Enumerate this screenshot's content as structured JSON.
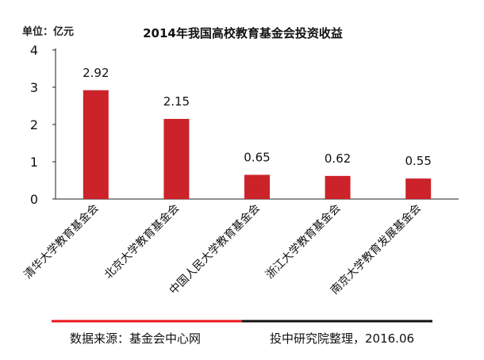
{
  "chart_data": {
    "type": "bar",
    "title": "2014年我国高校教育基金会投资收益",
    "unit_label": "单位：亿元",
    "categories": [
      "清华大学教育基金会",
      "北京大学教育基金会",
      "中国人民大学教育基金会",
      "浙江大学教育基金会",
      "南京大学教育发展基金会"
    ],
    "values": [
      2.92,
      2.15,
      0.65,
      0.62,
      0.55
    ],
    "value_labels": [
      "2.92",
      "2.15",
      "0.65",
      "0.62",
      "0.55"
    ],
    "ylim": [
      0,
      4
    ],
    "yticks": [
      "0",
      "1",
      "2",
      "3",
      "4"
    ],
    "grid": false,
    "bar_color": "#cc2229"
  },
  "footer": {
    "source": "数据来源：基金会中心网",
    "credit": "投中研究院整理，2016.06",
    "line_left_color": "#e8161c",
    "line_right_color": "#111111"
  }
}
